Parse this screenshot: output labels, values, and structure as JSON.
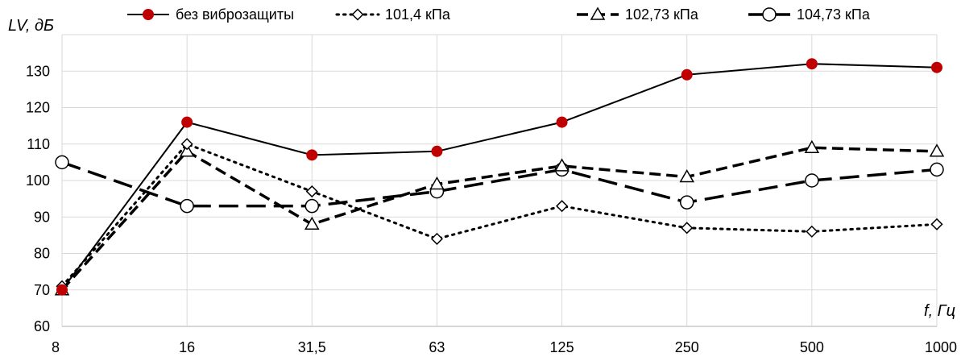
{
  "chart_data": {
    "type": "line",
    "ylabel": "LV, дБ",
    "xlabel": "f, Гц",
    "categories": [
      "8",
      "16",
      "31,5",
      "63",
      "125",
      "250",
      "500",
      "1000"
    ],
    "ylim": [
      60,
      140
    ],
    "yticks": [
      60,
      70,
      80,
      90,
      100,
      110,
      120,
      130
    ],
    "grid": true,
    "legend_position": "top",
    "series": [
      {
        "name": "без виброзащиты",
        "values": [
          70,
          116,
          107,
          108,
          116,
          129,
          132,
          131
        ],
        "line_style": "solid",
        "marker": "filled-circle",
        "line_color": "#000000",
        "marker_color": "#c00000"
      },
      {
        "name": "101,4 кПа",
        "values": [
          71,
          110,
          97,
          84,
          93,
          87,
          86,
          88
        ],
        "line_style": "dotted",
        "marker": "open-diamond",
        "line_color": "#000000",
        "marker_color": "#ffffff"
      },
      {
        "name": "102,73 кПа",
        "values": [
          70,
          108,
          88,
          99,
          104,
          101,
          109,
          108
        ],
        "line_style": "dashed",
        "marker": "open-triangle",
        "line_color": "#000000",
        "marker_color": "#ffffff"
      },
      {
        "name": "104,73 кПа",
        "values": [
          105,
          93,
          93,
          97,
          103,
          94,
          100,
          103
        ],
        "line_style": "long-dash",
        "marker": "open-circle",
        "line_color": "#000000",
        "marker_color": "#ffffff"
      }
    ]
  }
}
